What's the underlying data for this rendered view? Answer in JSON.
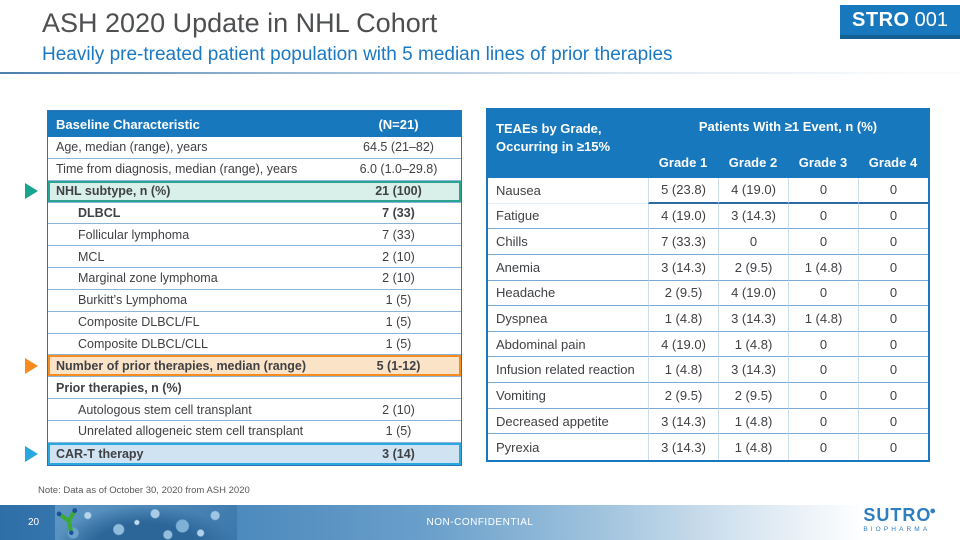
{
  "slide": {
    "title": "ASH 2020 Update in NHL Cohort",
    "subtitle": "Heavily pre-treated patient population with 5 median lines of prior therapies",
    "badge": {
      "brand": "STRO",
      "number": "001"
    },
    "note": "Note: Data as of October 30, 2020 from ASH 2020",
    "footer": {
      "page_number": "20",
      "classification": "NON-CONFIDENTIAL",
      "logo_text": "SUTRO",
      "logo_subtext": "BIOPHARMA"
    }
  },
  "colors": {
    "header_blue": "#1878be",
    "accent_teal": "#17a38d",
    "accent_orange": "#f68b1f",
    "accent_sky": "#29a8e0",
    "highlight_green_bg": "#d9efe9",
    "highlight_orange_bg": "#fbe3c7",
    "highlight_blue_bg": "#cfe3f3",
    "title_gray": "#4e4f51",
    "subtitle_blue": "#1b79c4"
  },
  "baseline_table": {
    "header_label": "Baseline Characteristic",
    "header_n": "(N=21)",
    "rows": [
      {
        "label": "Age, median (range), years",
        "value": "64.5 (21–82)"
      },
      {
        "label": "Time from diagnosis, median (range), years",
        "value": "6.0 (1.0–29.8)"
      },
      {
        "label": "NHL subtype, n (%)",
        "value": "21 (100)",
        "bold": true,
        "highlight": "green",
        "arrow": "teal"
      },
      {
        "label": "DLBCL",
        "value": "7 (33)",
        "bold": true,
        "indent": true
      },
      {
        "label": "Follicular lymphoma",
        "value": "7 (33)",
        "indent": true
      },
      {
        "label": "MCL",
        "value": "2 (10)",
        "indent": true
      },
      {
        "label": "Marginal zone lymphoma",
        "value": "2 (10)",
        "indent": true
      },
      {
        "label": "Burkitt’s Lymphoma",
        "value": "1 (5)",
        "indent": true
      },
      {
        "label": "Composite DLBCL/FL",
        "value": "1 (5)",
        "indent": true
      },
      {
        "label": "Composite DLBCL/CLL",
        "value": "1 (5)",
        "indent": true
      },
      {
        "label": "Number of prior therapies, median (range)",
        "value": "5 (1-12)",
        "bold": true,
        "highlight": "orange",
        "arrow": "orange"
      },
      {
        "label": "Prior therapies, n (%)",
        "value": "",
        "bold": true
      },
      {
        "label": "Autologous stem cell transplant",
        "value": "2 (10)",
        "indent": true
      },
      {
        "label": "Unrelated allogeneic stem cell transplant",
        "value": "1 (5)",
        "indent": true
      },
      {
        "label": "CAR-T therapy",
        "value": "3 (14)",
        "bold": true,
        "highlight": "blue",
        "arrow": "blue"
      }
    ]
  },
  "teae_table": {
    "title_line1": "TEAEs by Grade,",
    "title_line2": "Occurring in ≥15%",
    "group_header": "Patients With ≥1 Event, n (%)",
    "columns": [
      "Grade 1",
      "Grade 2",
      "Grade 3",
      "Grade 4"
    ],
    "rows": [
      {
        "label": "Nausea",
        "values": [
          "5 (23.8)",
          "4 (19.0)",
          "0",
          "0"
        ]
      },
      {
        "label": "Fatigue",
        "values": [
          "4 (19.0)",
          "3 (14.3)",
          "0",
          "0"
        ]
      },
      {
        "label": "Chills",
        "values": [
          "7 (33.3)",
          "0",
          "0",
          "0"
        ]
      },
      {
        "label": "Anemia",
        "values": [
          "3 (14.3)",
          "2 (9.5)",
          "1 (4.8)",
          "0"
        ]
      },
      {
        "label": "Headache",
        "values": [
          "2 (9.5)",
          "4 (19.0)",
          "0",
          "0"
        ]
      },
      {
        "label": "Dyspnea",
        "values": [
          "1 (4.8)",
          "3 (14.3)",
          "1 (4.8)",
          "0"
        ]
      },
      {
        "label": "Abdominal pain",
        "values": [
          "4 (19.0)",
          "1 (4.8)",
          "0",
          "0"
        ]
      },
      {
        "label": "Infusion related reaction",
        "values": [
          "1 (4.8)",
          "3 (14.3)",
          "0",
          "0"
        ]
      },
      {
        "label": "Vomiting",
        "values": [
          "2 (9.5)",
          "2 (9.5)",
          "0",
          "0"
        ]
      },
      {
        "label": "Decreased appetite",
        "values": [
          "3 (14.3)",
          "1 (4.8)",
          "0",
          "0"
        ]
      },
      {
        "label": "Pyrexia",
        "values": [
          "3 (14.3)",
          "1 (4.8)",
          "0",
          "0"
        ]
      }
    ]
  }
}
